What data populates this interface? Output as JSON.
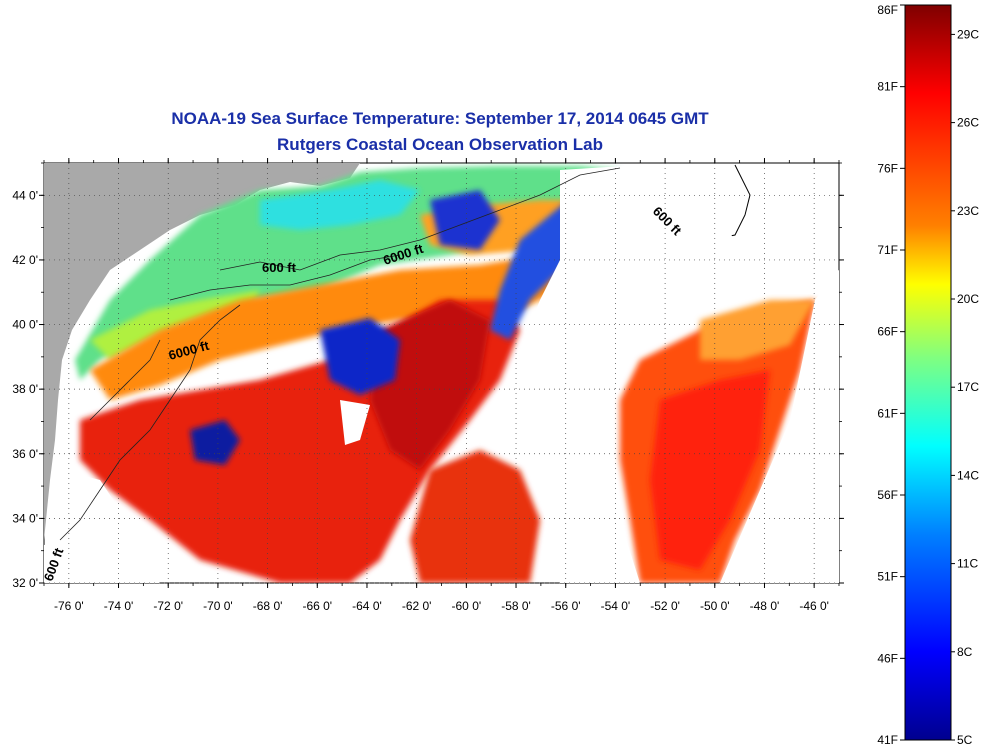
{
  "title_line1": "NOAA-19 Sea Surface Temperature:  September 17, 2014 0645 GMT",
  "title_line2": "Rutgers Coastal Ocean Observation Lab",
  "map": {
    "lon_range": [
      -77,
      -45
    ],
    "lat_range": [
      32,
      45
    ],
    "lon_ticks": [
      "-76 0'",
      "-74 0'",
      "-72 0'",
      "-70 0'",
      "-68 0'",
      "-66 0'",
      "-64 0'",
      "-62 0'",
      "-60 0'",
      "-58 0'",
      "-56 0'",
      "-54 0'",
      "-52 0'",
      "-50 0'",
      "-48 0'",
      "-46 0'"
    ],
    "lat_ticks": [
      "44 0'",
      "42 0'",
      "40 0'",
      "38 0'",
      "36 0'",
      "34 0'",
      "32 0'"
    ],
    "contour_labels": [
      "600 ft",
      "6000 ft",
      "600 ft",
      "6000 ft",
      "600 ft"
    ],
    "grid": true,
    "colors": {
      "land": "#a9a9a9",
      "cloud": "#ffffff"
    }
  },
  "colorbar": {
    "fahrenheit_labels": [
      "86F",
      "81F",
      "76F",
      "71F",
      "66F",
      "61F",
      "56F",
      "51F",
      "46F",
      "41F"
    ],
    "celsius_labels": [
      "29C",
      "26C",
      "23C",
      "20C",
      "17C",
      "14C",
      "11C",
      "8C",
      "5C"
    ],
    "range_c": [
      5,
      30
    ],
    "colormap": [
      "#7f0000",
      "#ff0000",
      "#ff8000",
      "#ffff00",
      "#80ff80",
      "#00ffff",
      "#0080ff",
      "#0000ff",
      "#00008f"
    ]
  }
}
